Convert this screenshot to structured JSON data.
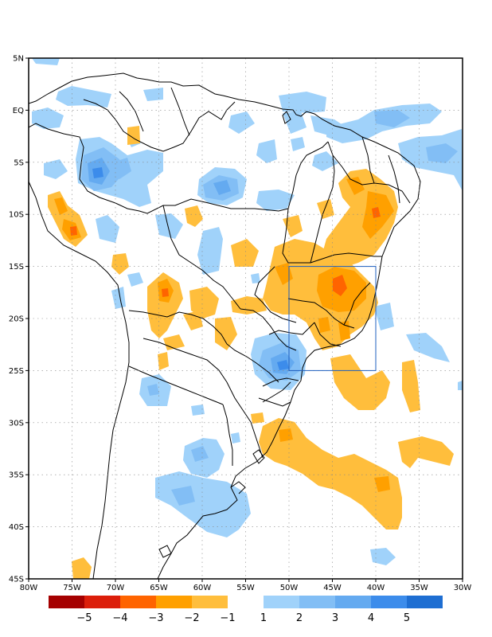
{
  "map": {
    "extent": {
      "lon": [
        -80,
        -30
      ],
      "lat": [
        -45,
        5
      ]
    },
    "lat_ticks": [
      "5N",
      "EQ",
      "5S",
      "10S",
      "15S",
      "20S",
      "25S",
      "30S",
      "35S",
      "40S",
      "45S"
    ],
    "lon_ticks": [
      "80W",
      "75W",
      "70W",
      "65W",
      "60W",
      "55W",
      "50W",
      "45W",
      "40W",
      "35W",
      "30W"
    ],
    "grid": "dotted",
    "highlight_box": {
      "lon": [
        -50,
        -40
      ],
      "lat": [
        -25,
        -15
      ],
      "color": "#1f5fbf"
    }
  },
  "colorbar": {
    "neg": {
      "labels": [
        "−5",
        "−4",
        "−3",
        "−2",
        "−1"
      ],
      "colors": [
        "#a50000",
        "#dc1e0a",
        "#ff6400",
        "#ffa000",
        "#ffbe3c"
      ]
    },
    "pos": {
      "labels": [
        "1",
        "2",
        "3",
        "4",
        "5"
      ],
      "colors": [
        "#a0d2fa",
        "#82bef5",
        "#64aaf0",
        "#3c8ceb",
        "#1e6ed2"
      ]
    }
  }
}
